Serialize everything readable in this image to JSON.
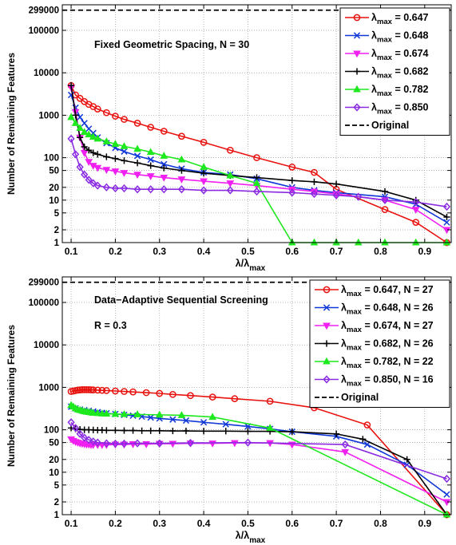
{
  "chart_data": [
    {
      "type": "line",
      "yscale": "log",
      "xlabel": "λ/λ",
      "xlabel_sub": "max",
      "ylabel": "Number of Remaining Features",
      "annotations": [
        "Fixed Geometric Spacing, N = 30"
      ],
      "xlim": [
        0.08,
        0.96
      ],
      "ylim": [
        1,
        400000
      ],
      "xticks": [
        0.1,
        0.2,
        0.3,
        0.4,
        0.5,
        0.6,
        0.7,
        0.8,
        0.9
      ],
      "yticks": [
        1,
        2,
        5,
        10,
        20,
        50,
        100,
        1000,
        10000,
        100000,
        299000
      ],
      "grid": true,
      "legend_position": "top-right",
      "reference_line": {
        "name": "Original",
        "value": 299000,
        "style": "dashed",
        "color": "#000000"
      },
      "series": [
        {
          "name": "λ = 0.647",
          "sub": "max",
          "color": "#e8120f",
          "marker": "circle",
          "x": [
            0.1,
            0.11,
            0.12,
            0.13,
            0.14,
            0.15,
            0.16,
            0.18,
            0.2,
            0.22,
            0.25,
            0.28,
            0.31,
            0.35,
            0.4,
            0.46,
            0.52,
            0.6,
            0.65,
            0.7,
            0.81,
            0.88,
            0.95
          ],
          "y": [
            5000,
            3000,
            2500,
            2100,
            1800,
            1600,
            1400,
            1150,
            950,
            800,
            650,
            520,
            420,
            320,
            230,
            150,
            100,
            60,
            45,
            18,
            6,
            3,
            1
          ]
        },
        {
          "name": "λ = 0.648",
          "sub": "max",
          "color": "#1038d8",
          "marker": "x",
          "x": [
            0.1,
            0.11,
            0.12,
            0.13,
            0.14,
            0.15,
            0.16,
            0.18,
            0.2,
            0.22,
            0.25,
            0.28,
            0.31,
            0.35,
            0.4,
            0.46,
            0.52,
            0.6,
            0.65,
            0.7,
            0.81,
            0.88,
            0.95
          ],
          "y": [
            3000,
            1500,
            900,
            650,
            480,
            380,
            300,
            220,
            170,
            140,
            110,
            90,
            70,
            55,
            45,
            40,
            32,
            20,
            17,
            15,
            12,
            8,
            3
          ]
        },
        {
          "name": "λ = 0.674",
          "sub": "max",
          "color": "#f020f0",
          "marker": "triangle-down",
          "x": [
            0.1,
            0.11,
            0.12,
            0.13,
            0.14,
            0.15,
            0.16,
            0.18,
            0.2,
            0.22,
            0.25,
            0.28,
            0.31,
            0.35,
            0.4,
            0.46,
            0.52,
            0.6,
            0.65,
            0.7,
            0.81,
            0.88,
            0.95
          ],
          "y": [
            4500,
            1200,
            300,
            130,
            80,
            65,
            58,
            52,
            48,
            44,
            40,
            37,
            34,
            31,
            28,
            25,
            22,
            18,
            16,
            14,
            10,
            6,
            2
          ]
        },
        {
          "name": "λ = 0.682",
          "sub": "max",
          "color": "#000000",
          "marker": "plus",
          "x": [
            0.1,
            0.11,
            0.12,
            0.13,
            0.14,
            0.15,
            0.16,
            0.18,
            0.2,
            0.22,
            0.25,
            0.28,
            0.31,
            0.35,
            0.4,
            0.46,
            0.52,
            0.6,
            0.65,
            0.7,
            0.81,
            0.88,
            0.95
          ],
          "y": [
            5000,
            1000,
            300,
            180,
            150,
            130,
            120,
            105,
            95,
            85,
            75,
            65,
            57,
            50,
            43,
            38,
            34,
            29,
            27,
            24,
            16,
            10,
            4
          ]
        },
        {
          "name": "λ = 0.782",
          "sub": "max",
          "color": "#1ee81e",
          "marker": "triangle-up",
          "x": [
            0.1,
            0.11,
            0.12,
            0.13,
            0.14,
            0.15,
            0.16,
            0.18,
            0.2,
            0.22,
            0.25,
            0.28,
            0.31,
            0.35,
            0.4,
            0.46,
            0.52,
            0.6,
            0.65,
            0.7,
            0.75,
            0.81,
            0.88,
            0.95
          ],
          "y": [
            900,
            650,
            500,
            400,
            350,
            310,
            280,
            240,
            210,
            185,
            160,
            135,
            110,
            90,
            60,
            38,
            25,
            1,
            1,
            1,
            1,
            1,
            1,
            1
          ]
        },
        {
          "name": "λ = 0.850",
          "sub": "max",
          "color": "#8a2be2",
          "marker": "diamond",
          "x": [
            0.1,
            0.11,
            0.12,
            0.13,
            0.14,
            0.15,
            0.16,
            0.18,
            0.2,
            0.22,
            0.25,
            0.28,
            0.31,
            0.35,
            0.4,
            0.46,
            0.52,
            0.6,
            0.65,
            0.7,
            0.75,
            0.81,
            0.88,
            0.95
          ],
          "y": [
            280,
            120,
            60,
            40,
            30,
            25,
            22,
            20,
            19,
            19,
            18,
            18,
            18,
            18,
            17,
            17,
            16,
            15,
            14,
            13,
            12,
            10,
            9,
            7
          ]
        }
      ]
    },
    {
      "type": "line",
      "yscale": "log",
      "xlabel": "λ/λ",
      "xlabel_sub": "max",
      "ylabel": "Number of Remaining Features",
      "annotations": [
        "Data−Adaptive Sequential Screening",
        "R = 0.3"
      ],
      "xlim": [
        0.08,
        0.96
      ],
      "ylim": [
        1,
        400000
      ],
      "xticks": [
        0.1,
        0.2,
        0.3,
        0.4,
        0.5,
        0.6,
        0.7,
        0.8,
        0.9
      ],
      "yticks": [
        1,
        2,
        5,
        10,
        20,
        50,
        100,
        1000,
        10000,
        100000,
        299000
      ],
      "grid": true,
      "legend_position": "top-right",
      "reference_line": {
        "name": "Original",
        "value": 299000,
        "style": "dashed",
        "color": "#000000"
      },
      "series": [
        {
          "name": "λ = 0.647, N = 27",
          "sub": "max",
          "color": "#e8120f",
          "marker": "circle",
          "x": [
            0.1,
            0.105,
            0.11,
            0.115,
            0.12,
            0.125,
            0.13,
            0.135,
            0.14,
            0.145,
            0.15,
            0.16,
            0.17,
            0.18,
            0.2,
            0.22,
            0.24,
            0.27,
            0.3,
            0.33,
            0.37,
            0.42,
            0.47,
            0.55,
            0.65,
            0.77,
            0.95
          ],
          "y": [
            800,
            820,
            840,
            860,
            870,
            880,
            880,
            880,
            880,
            875,
            870,
            860,
            850,
            840,
            820,
            800,
            780,
            750,
            720,
            680,
            640,
            590,
            540,
            470,
            330,
            130,
            1
          ]
        },
        {
          "name": "λ = 0.648, N = 26",
          "sub": "max",
          "color": "#1038d8",
          "marker": "x",
          "x": [
            0.1,
            0.11,
            0.12,
            0.13,
            0.14,
            0.15,
            0.16,
            0.17,
            0.18,
            0.2,
            0.22,
            0.24,
            0.26,
            0.28,
            0.3,
            0.33,
            0.36,
            0.4,
            0.45,
            0.5,
            0.55,
            0.6,
            0.7,
            0.77,
            0.86,
            0.95
          ],
          "y": [
            350,
            320,
            300,
            290,
            280,
            270,
            260,
            250,
            245,
            235,
            225,
            215,
            205,
            195,
            185,
            175,
            165,
            150,
            135,
            120,
            105,
            90,
            70,
            45,
            15,
            3
          ]
        },
        {
          "name": "λ = 0.674, N = 27",
          "sub": "max",
          "color": "#f020f0",
          "marker": "triangle-down",
          "x": [
            0.1,
            0.105,
            0.11,
            0.115,
            0.12,
            0.125,
            0.13,
            0.135,
            0.14,
            0.145,
            0.15,
            0.16,
            0.17,
            0.18,
            0.2,
            0.22,
            0.24,
            0.27,
            0.3,
            0.33,
            0.37,
            0.42,
            0.47,
            0.55,
            0.6,
            0.72,
            0.95
          ],
          "y": [
            60,
            55,
            52,
            50,
            48,
            47,
            46,
            45,
            45,
            44,
            44,
            44,
            44,
            44,
            45,
            45,
            46,
            46,
            47,
            47,
            48,
            48,
            49,
            49,
            45,
            30,
            2
          ]
        },
        {
          "name": "λ = 0.682, N = 26",
          "sub": "max",
          "color": "#000000",
          "marker": "plus",
          "x": [
            0.1,
            0.11,
            0.12,
            0.13,
            0.14,
            0.15,
            0.16,
            0.17,
            0.18,
            0.2,
            0.22,
            0.24,
            0.26,
            0.28,
            0.3,
            0.33,
            0.36,
            0.4,
            0.45,
            0.5,
            0.55,
            0.6,
            0.7,
            0.76,
            0.86,
            0.95
          ],
          "y": [
            110,
            105,
            102,
            100,
            100,
            99,
            98,
            98,
            97,
            97,
            96,
            96,
            95,
            95,
            95,
            94,
            94,
            93,
            93,
            92,
            92,
            90,
            80,
            60,
            20,
            1
          ]
        },
        {
          "name": "λ = 0.782, N = 22",
          "sub": "max",
          "color": "#1ee81e",
          "marker": "triangle-up",
          "x": [
            0.1,
            0.105,
            0.11,
            0.115,
            0.12,
            0.125,
            0.13,
            0.135,
            0.14,
            0.145,
            0.15,
            0.16,
            0.17,
            0.18,
            0.2,
            0.22,
            0.25,
            0.3,
            0.35,
            0.42,
            0.55,
            0.95
          ],
          "y": [
            380,
            350,
            320,
            300,
            290,
            280,
            270,
            265,
            260,
            255,
            250,
            245,
            240,
            238,
            235,
            232,
            230,
            225,
            220,
            200,
            110,
            1
          ]
        },
        {
          "name": "λ = 0.850, N = 16",
          "sub": "max",
          "color": "#8a2be2",
          "marker": "diamond",
          "x": [
            0.1,
            0.11,
            0.12,
            0.13,
            0.14,
            0.15,
            0.16,
            0.18,
            0.2,
            0.22,
            0.25,
            0.3,
            0.37,
            0.5,
            0.72,
            0.95
          ],
          "y": [
            150,
            110,
            80,
            65,
            58,
            53,
            50,
            48,
            47,
            47,
            48,
            48,
            49,
            50,
            45,
            7
          ]
        }
      ]
    }
  ]
}
